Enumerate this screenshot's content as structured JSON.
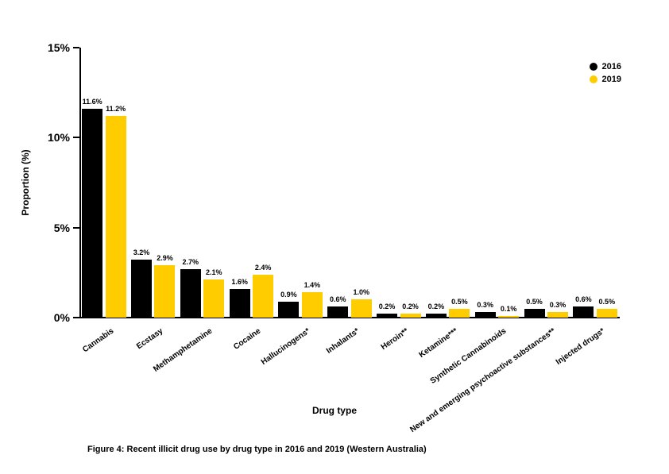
{
  "chart": {
    "type": "bar",
    "background_color": "#ffffff",
    "axis_color": "#000000",
    "text_color": "#000000",
    "title_fontsize": 12,
    "label_fontsize": 10,
    "value_fontsize": 9,
    "ytick_fontsize": 14,
    "ylabel": "Proportion (%)",
    "xlabel": "Drug type",
    "ylim": [
      0,
      15
    ],
    "ytick_step": 5,
    "yticks": [
      "0%",
      "5%",
      "10%",
      "15%"
    ],
    "bar_gap_pct": 2,
    "bar_width_pct": 45,
    "series": [
      {
        "key": "a",
        "label": "2016",
        "color": "#000000"
      },
      {
        "key": "b",
        "label": "2019",
        "color": "#ffcc00"
      }
    ],
    "categories": [
      {
        "label": "Cannabis",
        "a": 11.6,
        "b": 11.2
      },
      {
        "label": "Ecstasy",
        "a": 3.2,
        "b": 2.9
      },
      {
        "label": "Methamphetamine",
        "a": 2.7,
        "b": 2.1
      },
      {
        "label": "Cocaine",
        "a": 1.6,
        "b": 2.4
      },
      {
        "label": "Hallucinogens*",
        "a": 0.9,
        "b": 1.4
      },
      {
        "label": "Inhalants*",
        "a": 0.6,
        "b": 1.0
      },
      {
        "label": "Heroin**",
        "a": 0.2,
        "b": 0.2
      },
      {
        "label": "Ketamine***",
        "a": 0.2,
        "b": 0.5
      },
      {
        "label": "Synthetic Cannabinoids",
        "a": 0.3,
        "b": 0.1
      },
      {
        "label": "New and emerging psychoactive substances**",
        "a": 0.5,
        "b": 0.3
      },
      {
        "label": "Injected drugs*",
        "a": 0.6,
        "b": 0.5
      }
    ],
    "caption": "Figure 4: Recent illicit drug use by drug type in 2016 and 2019 (Western Australia)"
  }
}
